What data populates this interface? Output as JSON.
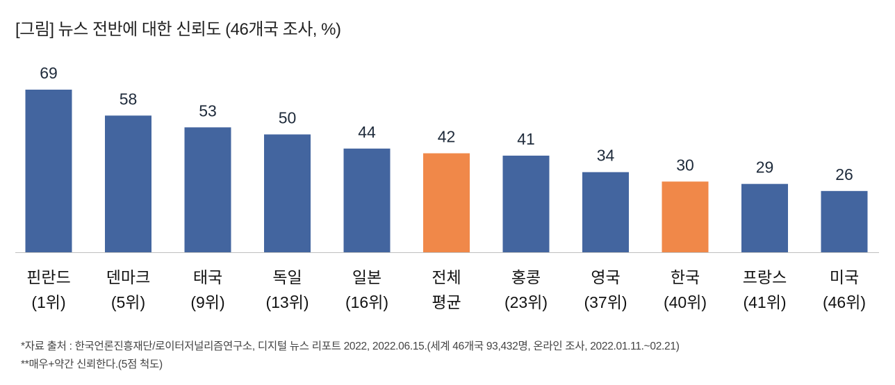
{
  "chart_data": {
    "type": "bar",
    "title": "[그림] 뉴스 전반에 대한 신뢰도 (46개국 조사, %)",
    "categories": [
      [
        "핀란드",
        "(1위)"
      ],
      [
        "덴마크",
        "(5위)"
      ],
      [
        "태국",
        "(9위)"
      ],
      [
        "독일",
        "(13위)"
      ],
      [
        "일본",
        "(16위)"
      ],
      [
        "전체",
        "평균"
      ],
      [
        "홍콩",
        "(23위)"
      ],
      [
        "영국",
        "(37위)"
      ],
      [
        "한국",
        "(40위)"
      ],
      [
        "프랑스",
        "(41위)"
      ],
      [
        "미국",
        "(46위)"
      ]
    ],
    "values": [
      69,
      58,
      53,
      50,
      44,
      42,
      41,
      34,
      30,
      29,
      26
    ],
    "highlight": [
      false,
      false,
      false,
      false,
      false,
      true,
      false,
      false,
      true,
      false,
      false
    ],
    "colors": {
      "default": "#43659F",
      "highlight": "#F08849"
    },
    "xlabel": "",
    "ylabel": "",
    "ylim": [
      0,
      69
    ],
    "grid": false
  },
  "footnotes": [
    "*자료 출처 : 한국언론진흥재단/로이터저널리즘연구소, 디지털 뉴스 리포트 2022, 2022.06.15.(세계 46개국 93,432명, 온라인 조사, 2022.01.11.~02.21)",
    "**매우+약간 신뢰한다.(5점 척도)"
  ]
}
